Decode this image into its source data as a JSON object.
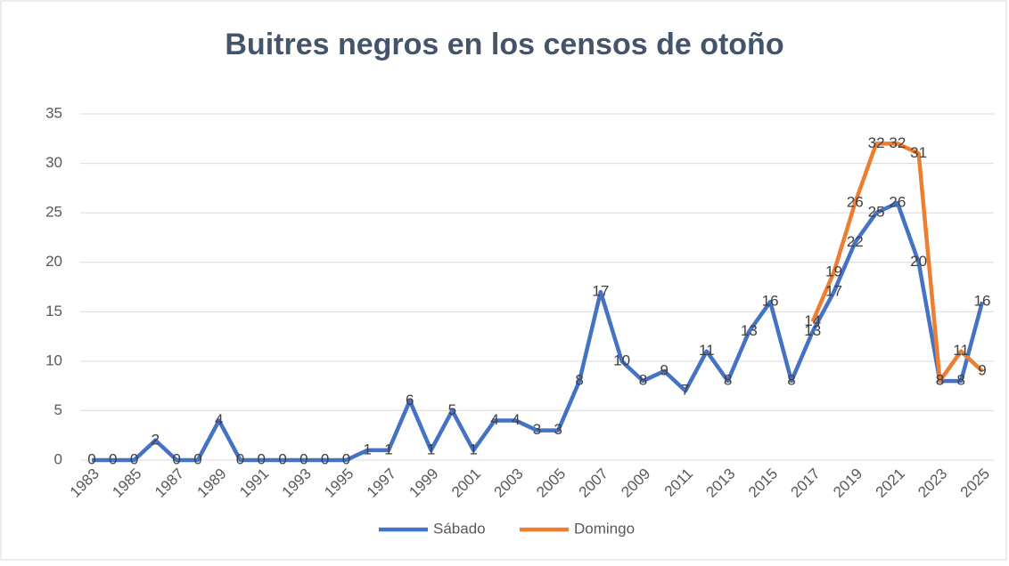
{
  "chart_data": {
    "type": "line",
    "title": "Buitres negros en los censos de otoño",
    "x": [
      1983,
      1984,
      1985,
      1986,
      1987,
      1988,
      1989,
      1990,
      1991,
      1992,
      1993,
      1994,
      1995,
      1996,
      1997,
      1998,
      1999,
      2000,
      2001,
      2002,
      2003,
      2004,
      2005,
      2006,
      2007,
      2008,
      2009,
      2010,
      2011,
      2012,
      2013,
      2014,
      2015,
      2016,
      2017,
      2018,
      2019,
      2020,
      2021,
      2022,
      2023,
      2024,
      2025
    ],
    "series": [
      {
        "name": "Sábado",
        "color": "#4472c4",
        "values": [
          0,
          0,
          0,
          2,
          0,
          0,
          4,
          0,
          0,
          0,
          0,
          0,
          0,
          1,
          1,
          6,
          1,
          5,
          1,
          4,
          4,
          3,
          3,
          8,
          17,
          10,
          8,
          9,
          7,
          11,
          8,
          13,
          16,
          8,
          13,
          17,
          22,
          25,
          26,
          20,
          8,
          8,
          16
        ]
      },
      {
        "name": "Domingo",
        "color": "#ed7d31",
        "values": [
          null,
          null,
          null,
          null,
          null,
          null,
          null,
          null,
          null,
          null,
          null,
          null,
          null,
          null,
          null,
          null,
          null,
          null,
          null,
          null,
          null,
          null,
          null,
          null,
          null,
          null,
          null,
          null,
          null,
          null,
          null,
          null,
          null,
          null,
          14,
          19,
          26,
          32,
          32,
          31,
          8,
          11,
          9
        ]
      }
    ],
    "xlim": [
      1983,
      2025
    ],
    "xticks": [
      1983,
      1985,
      1987,
      1989,
      1991,
      1993,
      1995,
      1997,
      1999,
      2001,
      2003,
      2005,
      2007,
      2009,
      2011,
      2013,
      2015,
      2017,
      2019,
      2021,
      2023,
      2025
    ],
    "ylim": [
      0,
      35
    ],
    "yticks": [
      0,
      5,
      10,
      15,
      20,
      25,
      30,
      35
    ],
    "grid": true,
    "legend": "bottom"
  }
}
